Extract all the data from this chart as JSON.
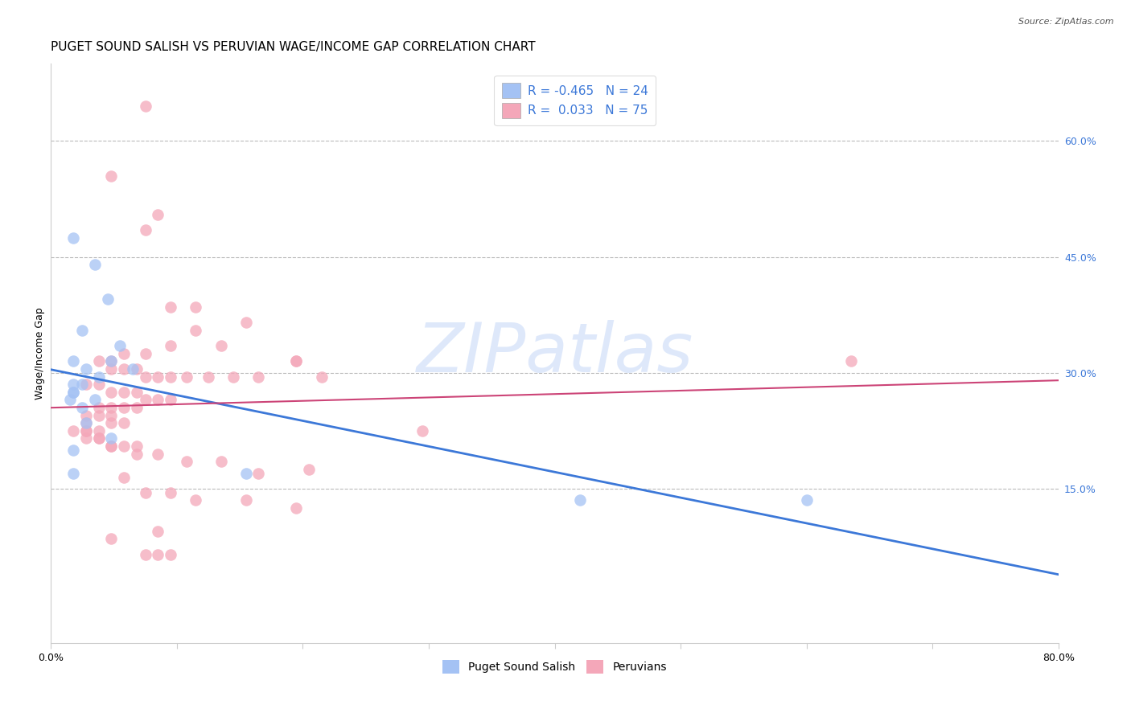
{
  "title": "PUGET SOUND SALISH VS PERUVIAN WAGE/INCOME GAP CORRELATION CHART",
  "source": "Source: ZipAtlas.com",
  "ylabel": "Wage/Income Gap",
  "xlim": [
    0.0,
    0.8
  ],
  "ylim": [
    -0.05,
    0.7
  ],
  "legend_R1": "-0.465",
  "legend_N1": "24",
  "legend_R2": "0.033",
  "legend_N2": "75",
  "blue_color": "#a4c2f4",
  "pink_color": "#f4a7b9",
  "blue_line_color": "#3c78d8",
  "pink_line_color": "#cc4477",
  "blue_scatter_x": [
    0.018,
    0.035,
    0.045,
    0.025,
    0.055,
    0.048,
    0.065,
    0.018,
    0.028,
    0.038,
    0.025,
    0.018,
    0.018,
    0.018,
    0.015,
    0.035,
    0.025,
    0.028,
    0.048,
    0.42,
    0.6,
    0.018,
    0.018,
    0.155
  ],
  "blue_scatter_y": [
    0.475,
    0.44,
    0.395,
    0.355,
    0.335,
    0.315,
    0.305,
    0.315,
    0.305,
    0.295,
    0.285,
    0.285,
    0.275,
    0.275,
    0.265,
    0.265,
    0.255,
    0.235,
    0.215,
    0.135,
    0.135,
    0.2,
    0.17,
    0.17
  ],
  "pink_scatter_x": [
    0.075,
    0.048,
    0.085,
    0.075,
    0.115,
    0.095,
    0.155,
    0.115,
    0.135,
    0.095,
    0.075,
    0.058,
    0.048,
    0.038,
    0.048,
    0.058,
    0.068,
    0.075,
    0.085,
    0.095,
    0.108,
    0.125,
    0.145,
    0.165,
    0.195,
    0.215,
    0.028,
    0.038,
    0.048,
    0.058,
    0.068,
    0.075,
    0.085,
    0.095,
    0.058,
    0.048,
    0.038,
    0.028,
    0.028,
    0.018,
    0.028,
    0.038,
    0.048,
    0.058,
    0.068,
    0.085,
    0.108,
    0.135,
    0.205,
    0.295,
    0.038,
    0.048,
    0.048,
    0.058,
    0.038,
    0.028,
    0.028,
    0.038,
    0.048,
    0.068,
    0.075,
    0.095,
    0.115,
    0.155,
    0.195,
    0.085,
    0.048,
    0.075,
    0.085,
    0.095,
    0.058,
    0.068,
    0.195,
    0.635,
    0.165
  ],
  "pink_scatter_y": [
    0.645,
    0.555,
    0.505,
    0.485,
    0.385,
    0.385,
    0.365,
    0.355,
    0.335,
    0.335,
    0.325,
    0.325,
    0.315,
    0.315,
    0.305,
    0.305,
    0.305,
    0.295,
    0.295,
    0.295,
    0.295,
    0.295,
    0.295,
    0.295,
    0.315,
    0.295,
    0.285,
    0.285,
    0.275,
    0.275,
    0.275,
    0.265,
    0.265,
    0.265,
    0.255,
    0.255,
    0.255,
    0.245,
    0.235,
    0.225,
    0.225,
    0.215,
    0.205,
    0.205,
    0.205,
    0.195,
    0.185,
    0.185,
    0.175,
    0.225,
    0.245,
    0.245,
    0.235,
    0.235,
    0.225,
    0.225,
    0.215,
    0.215,
    0.205,
    0.195,
    0.145,
    0.145,
    0.135,
    0.135,
    0.125,
    0.095,
    0.085,
    0.065,
    0.065,
    0.065,
    0.165,
    0.255,
    0.315,
    0.315,
    0.17
  ],
  "watermark_text": "ZIPatlas",
  "watermark_color": "#c9daf8",
  "watermark_alpha": 0.6,
  "background_color": "#ffffff",
  "grid_color": "#bbbbbb",
  "title_fontsize": 11,
  "axis_label_fontsize": 9,
  "tick_fontsize": 9,
  "legend_fontsize": 11,
  "right_tick_color": "#3c78d8"
}
